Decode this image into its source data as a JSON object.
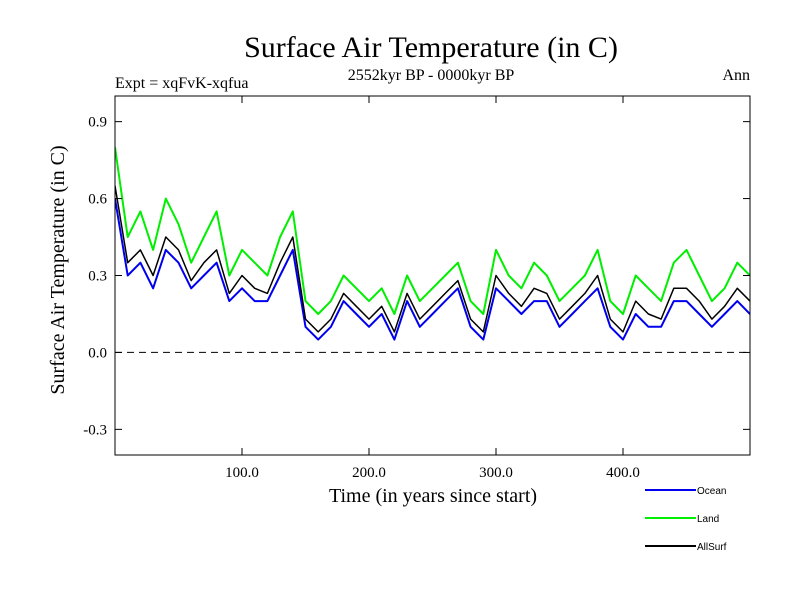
{
  "chart_data": {
    "type": "line",
    "title": "Surface Air Temperature (in C)",
    "subtitle": "2552kyr BP - 0000kyr BP",
    "experiment_label": "Expt = xqFvK-xqfua",
    "season_label": "Ann",
    "xlabel": "Time (in years since start)",
    "ylabel": "Surface Air Temperature (in C)",
    "xlim": [
      0,
      500
    ],
    "ylim": [
      -0.4,
      1.0
    ],
    "x_ticks": [
      100,
      200,
      300,
      400
    ],
    "x_tick_labels": [
      "100.0",
      "200.0",
      "300.0",
      "400.0"
    ],
    "y_ticks": [
      -0.3,
      0.0,
      0.3,
      0.6,
      0.9
    ],
    "y_tick_labels": [
      "-0.3",
      "0.0",
      "0.3",
      "0.6",
      "0.9"
    ],
    "zero_line": 0.0,
    "x": [
      0,
      10,
      20,
      30,
      40,
      50,
      60,
      70,
      80,
      90,
      100,
      110,
      120,
      130,
      140,
      150,
      160,
      170,
      180,
      190,
      200,
      210,
      220,
      230,
      240,
      250,
      260,
      270,
      280,
      290,
      300,
      310,
      320,
      330,
      340,
      350,
      360,
      370,
      380,
      390,
      400,
      410,
      420,
      430,
      440,
      450,
      460,
      470,
      480,
      490,
      500
    ],
    "series": [
      {
        "name": "Land",
        "color": "#00ee00",
        "values": [
          0.8,
          0.45,
          0.55,
          0.4,
          0.6,
          0.5,
          0.35,
          0.45,
          0.55,
          0.3,
          0.4,
          0.35,
          0.3,
          0.45,
          0.55,
          0.2,
          0.15,
          0.2,
          0.3,
          0.25,
          0.2,
          0.25,
          0.15,
          0.3,
          0.2,
          0.25,
          0.3,
          0.35,
          0.2,
          0.15,
          0.4,
          0.3,
          0.25,
          0.35,
          0.3,
          0.2,
          0.25,
          0.3,
          0.4,
          0.2,
          0.15,
          0.3,
          0.25,
          0.2,
          0.35,
          0.4,
          0.3,
          0.2,
          0.25,
          0.35,
          0.3
        ]
      },
      {
        "name": "Ocean",
        "color": "#0000ee",
        "values": [
          0.6,
          0.3,
          0.35,
          0.25,
          0.4,
          0.35,
          0.25,
          0.3,
          0.35,
          0.2,
          0.25,
          0.2,
          0.2,
          0.3,
          0.4,
          0.1,
          0.05,
          0.1,
          0.2,
          0.15,
          0.1,
          0.15,
          0.05,
          0.2,
          0.1,
          0.15,
          0.2,
          0.25,
          0.1,
          0.05,
          0.25,
          0.2,
          0.15,
          0.2,
          0.2,
          0.1,
          0.15,
          0.2,
          0.25,
          0.1,
          0.05,
          0.15,
          0.1,
          0.1,
          0.2,
          0.2,
          0.15,
          0.1,
          0.15,
          0.2,
          0.15
        ]
      },
      {
        "name": "AllSurf",
        "color": "#000000",
        "values": [
          0.65,
          0.35,
          0.4,
          0.3,
          0.45,
          0.4,
          0.28,
          0.35,
          0.4,
          0.23,
          0.3,
          0.25,
          0.23,
          0.35,
          0.45,
          0.13,
          0.08,
          0.13,
          0.23,
          0.18,
          0.13,
          0.18,
          0.08,
          0.23,
          0.13,
          0.18,
          0.23,
          0.28,
          0.13,
          0.08,
          0.3,
          0.23,
          0.18,
          0.25,
          0.23,
          0.13,
          0.18,
          0.23,
          0.3,
          0.13,
          0.08,
          0.2,
          0.15,
          0.13,
          0.25,
          0.25,
          0.2,
          0.13,
          0.18,
          0.25,
          0.2
        ]
      }
    ],
    "legend": [
      "Ocean",
      "Land",
      "AllSurf"
    ],
    "legend_position": "bottom-right"
  }
}
